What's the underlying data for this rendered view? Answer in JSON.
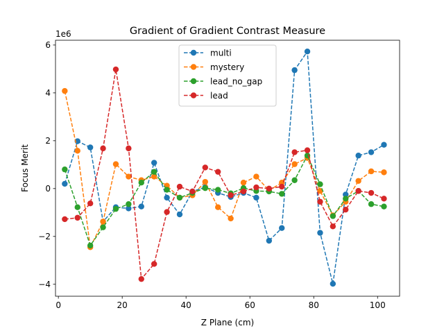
{
  "chart_data": {
    "type": "line",
    "title": "Gradient of Gradient Contrast Measure",
    "xlabel": "Z Plane (cm)",
    "ylabel": "Focus Merit",
    "y_multiplier_label": "1e6",
    "xlim": [
      -0.9,
      106.9
    ],
    "ylim": [
      -4.5,
      6.2
    ],
    "xticks": [
      0,
      20,
      40,
      60,
      80,
      100
    ],
    "yticks": [
      -4,
      -2,
      0,
      2,
      4,
      6
    ],
    "xtick_labels": [
      "0",
      "20",
      "40",
      "60",
      "80",
      "100"
    ],
    "ytick_labels": [
      "−4",
      "−2",
      "0",
      "2",
      "4",
      "6"
    ],
    "legend_position": "upper center",
    "x": [
      2,
      6,
      10,
      14,
      18,
      22,
      26,
      30,
      34,
      38,
      42,
      46,
      50,
      54,
      58,
      62,
      66,
      70,
      74,
      78,
      82,
      86,
      90,
      94,
      98,
      102
    ],
    "series": [
      {
        "name": "multi",
        "color": "#1f77b4",
        "values": [
          0.2,
          1.98,
          1.72,
          -1.38,
          -0.78,
          -0.83,
          -0.75,
          1.08,
          -0.38,
          -1.08,
          -0.12,
          0.06,
          -0.18,
          -0.35,
          -0.18,
          -0.38,
          -2.18,
          -1.65,
          4.95,
          5.73,
          -1.85,
          -3.98,
          -0.25,
          1.38,
          1.52,
          1.83
        ]
      },
      {
        "name": "mystery",
        "color": "#ff7f0e",
        "values": [
          4.08,
          1.58,
          -2.45,
          -1.38,
          1.02,
          0.5,
          0.35,
          0.5,
          0.12,
          -0.38,
          -0.28,
          0.28,
          -0.78,
          -1.25,
          0.25,
          0.5,
          -0.08,
          0.25,
          1.02,
          1.28,
          -0.1,
          -1.12,
          -0.55,
          0.32,
          0.72,
          0.68
        ]
      },
      {
        "name": "lead_no_gap",
        "color": "#2ca02c",
        "values": [
          0.8,
          -0.78,
          -2.38,
          -1.62,
          -0.85,
          -0.65,
          0.25,
          0.7,
          -0.05,
          -0.38,
          -0.18,
          0.02,
          -0.05,
          -0.2,
          0.02,
          -0.1,
          -0.12,
          -0.22,
          0.35,
          1.38,
          0.18,
          -1.15,
          -0.42,
          -0.1,
          -0.65,
          -0.75
        ]
      },
      {
        "name": "lead",
        "color": "#d62728",
        "values": [
          -1.28,
          -1.22,
          -0.62,
          1.68,
          4.98,
          1.68,
          -3.78,
          -3.15,
          -0.98,
          0.08,
          -0.12,
          0.88,
          0.7,
          -0.28,
          -0.12,
          0.05,
          0.0,
          0.08,
          1.52,
          1.6,
          -0.55,
          -1.58,
          -0.88,
          -0.1,
          -0.18,
          -0.42
        ]
      }
    ]
  }
}
